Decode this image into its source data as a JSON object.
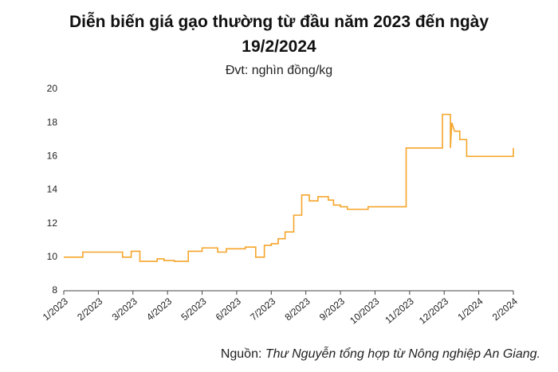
{
  "chart_data": {
    "type": "line",
    "title": "Diễn biến giá gạo thường từ đầu năm 2023 đến ngày 19/2/2024",
    "subtitle": "Đvt: nghìn đồng/kg",
    "source_label": "Nguồn:",
    "source_text": "Thư Nguyễn tổng hợp từ Nông nghiệp An Giang.",
    "series": [
      {
        "color": "#f5a52a",
        "x": [
          0,
          0.55,
          0.55,
          1.7,
          1.7,
          1.95,
          1.95,
          2.2,
          2.2,
          2.7,
          2.7,
          2.9,
          2.9,
          3.2,
          3.2,
          3.6,
          3.6,
          4.0,
          4.0,
          4.45,
          4.45,
          4.7,
          4.7,
          5.25,
          5.25,
          5.55,
          5.55,
          5.8,
          5.8,
          6.0,
          6.0,
          6.2,
          6.2,
          6.4,
          6.4,
          6.65,
          6.65,
          6.88,
          6.88,
          7.1,
          7.1,
          7.35,
          7.35,
          7.65,
          7.65,
          7.8,
          7.8,
          8.0,
          8.0,
          8.2,
          8.2,
          8.8,
          8.8,
          9.9,
          9.9,
          10.95,
          10.95,
          11.18,
          11.18,
          11.22,
          11.3,
          11.45,
          11.45,
          11.65,
          11.65,
          13.0,
          13.0
        ],
        "values": [
          10,
          10,
          10.3,
          10.3,
          10,
          10,
          10.35,
          10.35,
          9.75,
          9.75,
          9.9,
          9.9,
          9.8,
          9.8,
          9.75,
          9.75,
          10.35,
          10.35,
          10.55,
          10.55,
          10.3,
          10.3,
          10.5,
          10.5,
          10.6,
          10.6,
          10,
          10,
          10.7,
          10.7,
          10.8,
          10.8,
          11.1,
          11.1,
          11.5,
          11.5,
          12.5,
          12.5,
          13.7,
          13.7,
          13.35,
          13.35,
          13.6,
          13.6,
          13.4,
          13.4,
          13.1,
          13.1,
          13.0,
          13.0,
          12.85,
          12.85,
          13.0,
          13.0,
          16.5,
          16.5,
          18.5,
          18.5,
          16.5,
          18.0,
          17.5,
          17.5,
          17.0,
          17.0,
          16.0,
          16.0,
          16.5
        ]
      }
    ],
    "xlim": [
      0,
      13
    ],
    "xticks": [
      {
        "value": 0,
        "label": "1/2023"
      },
      {
        "value": 1,
        "label": "2/2023"
      },
      {
        "value": 2,
        "label": "3/2023"
      },
      {
        "value": 3,
        "label": "4/2023"
      },
      {
        "value": 4,
        "label": "5/2023"
      },
      {
        "value": 5,
        "label": "6/2023"
      },
      {
        "value": 6,
        "label": "7/2023"
      },
      {
        "value": 7,
        "label": "8/2023"
      },
      {
        "value": 8,
        "label": "9/2023"
      },
      {
        "value": 9,
        "label": "10/2023"
      },
      {
        "value": 10,
        "label": "11/2023"
      },
      {
        "value": 11,
        "label": "12/2023"
      },
      {
        "value": 12,
        "label": "1/2024"
      },
      {
        "value": 13,
        "label": "2/2024"
      }
    ],
    "ylim": [
      8,
      20
    ],
    "yticks": [
      8,
      10,
      12,
      14,
      16,
      18,
      20
    ],
    "grid": false
  }
}
